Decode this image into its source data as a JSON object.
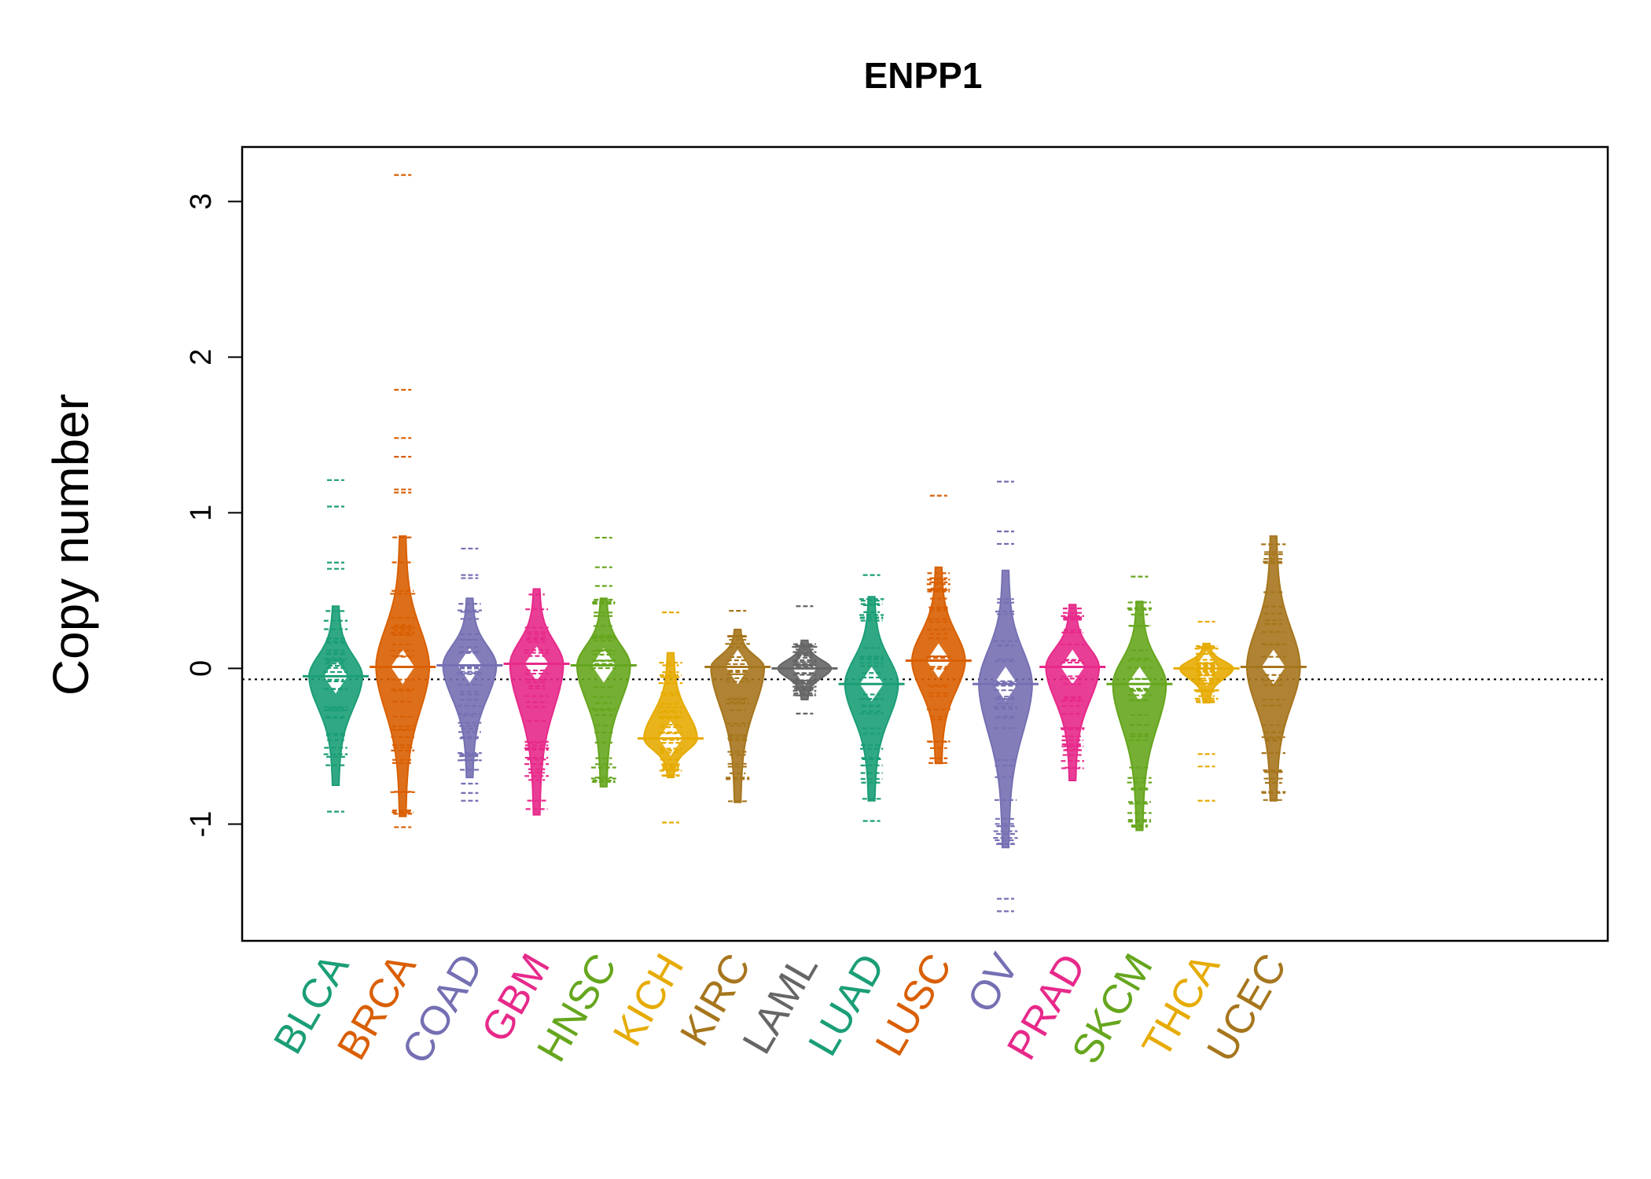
{
  "chart_data": {
    "type": "beanplot",
    "title": "ENPP1",
    "xlabel": "",
    "ylabel": "Copy number",
    "ylim": [
      -1.75,
      3.35
    ],
    "yticks": [
      -1,
      0,
      1,
      2,
      3
    ],
    "ytick_labels": [
      "-1",
      "0",
      "1",
      "2",
      "3"
    ],
    "overall_mean_line": -0.07,
    "grid": false,
    "legend": "none",
    "categories": [
      "BLCA",
      "BRCA",
      "COAD",
      "GBM",
      "HNSC",
      "KICH",
      "KIRC",
      "LAML",
      "LUAD",
      "LUSC",
      "OV",
      "PRAD",
      "SKCM",
      "THCA",
      "UCEC"
    ],
    "colors": [
      "#1B9E77",
      "#D95F02",
      "#7570B3",
      "#E7298A",
      "#66A61E",
      "#E6AB02",
      "#A6761D",
      "#666666",
      "#1B9E77",
      "#D95F02",
      "#7570B3",
      "#E7298A",
      "#66A61E",
      "#E6AB02",
      "#A6761D"
    ],
    "series": [
      {
        "name": "BLCA",
        "min": -0.92,
        "max": 1.21,
        "mean": -0.05,
        "outliers": [
          1.21,
          1.04,
          0.68,
          0.64,
          -0.92
        ],
        "body": [
          -0.75,
          0.4
        ]
      },
      {
        "name": "BRCA",
        "min": -1.02,
        "max": 3.17,
        "mean": 0.01,
        "outliers": [
          3.17,
          1.79,
          1.48,
          1.36,
          1.15,
          1.13,
          -1.02
        ],
        "body": [
          -0.95,
          0.85
        ]
      },
      {
        "name": "COAD",
        "min": -0.85,
        "max": 0.77,
        "mean": 0.02,
        "outliers": [
          0.77,
          0.6,
          0.58,
          -0.74,
          -0.8,
          -0.85
        ],
        "body": [
          -0.7,
          0.45
        ]
      },
      {
        "name": "GBM",
        "min": -0.94,
        "max": 0.51,
        "mean": 0.03,
        "outliers": [],
        "body": [
          -0.94,
          0.51
        ]
      },
      {
        "name": "HNSC",
        "min": -0.76,
        "max": 0.84,
        "mean": 0.02,
        "outliers": [
          0.84,
          0.65,
          0.53
        ],
        "body": [
          -0.76,
          0.45
        ]
      },
      {
        "name": "KICH",
        "min": -0.99,
        "max": 0.36,
        "mean": -0.45,
        "outliers": [
          0.36,
          -0.99
        ],
        "body": [
          -0.7,
          0.1
        ]
      },
      {
        "name": "KIRC",
        "min": -0.86,
        "max": 0.37,
        "mean": 0.01,
        "outliers": [
          0.37
        ],
        "body": [
          -0.86,
          0.25
        ]
      },
      {
        "name": "LAML",
        "min": -0.29,
        "max": 0.4,
        "mean": 0.0,
        "outliers": [
          0.4,
          -0.29
        ],
        "body": [
          -0.2,
          0.18
        ]
      },
      {
        "name": "LUAD",
        "min": -0.98,
        "max": 0.6,
        "mean": -0.1,
        "outliers": [
          0.6,
          -0.98
        ],
        "body": [
          -0.85,
          0.46
        ]
      },
      {
        "name": "LUSC",
        "min": -0.61,
        "max": 1.11,
        "mean": 0.05,
        "outliers": [
          1.11
        ],
        "body": [
          -0.61,
          0.65
        ]
      },
      {
        "name": "OV",
        "min": -1.56,
        "max": 1.2,
        "mean": -0.1,
        "outliers": [
          1.2,
          0.88,
          0.8,
          -1.48,
          -1.56
        ],
        "body": [
          -1.15,
          0.63
        ]
      },
      {
        "name": "PRAD",
        "min": -0.72,
        "max": 0.41,
        "mean": 0.01,
        "outliers": [],
        "body": [
          -0.72,
          0.41
        ]
      },
      {
        "name": "SKCM",
        "min": -1.04,
        "max": 0.59,
        "mean": -0.1,
        "outliers": [
          0.59
        ],
        "body": [
          -1.04,
          0.43
        ]
      },
      {
        "name": "THCA",
        "min": -0.85,
        "max": 0.3,
        "mean": 0.0,
        "outliers": [
          0.3,
          -0.55,
          -0.63,
          -0.85
        ],
        "body": [
          -0.22,
          0.16
        ]
      },
      {
        "name": "UCEC",
        "min": -0.85,
        "max": 0.85,
        "mean": 0.01,
        "outliers": [],
        "body": [
          -0.85,
          0.85
        ]
      }
    ]
  }
}
